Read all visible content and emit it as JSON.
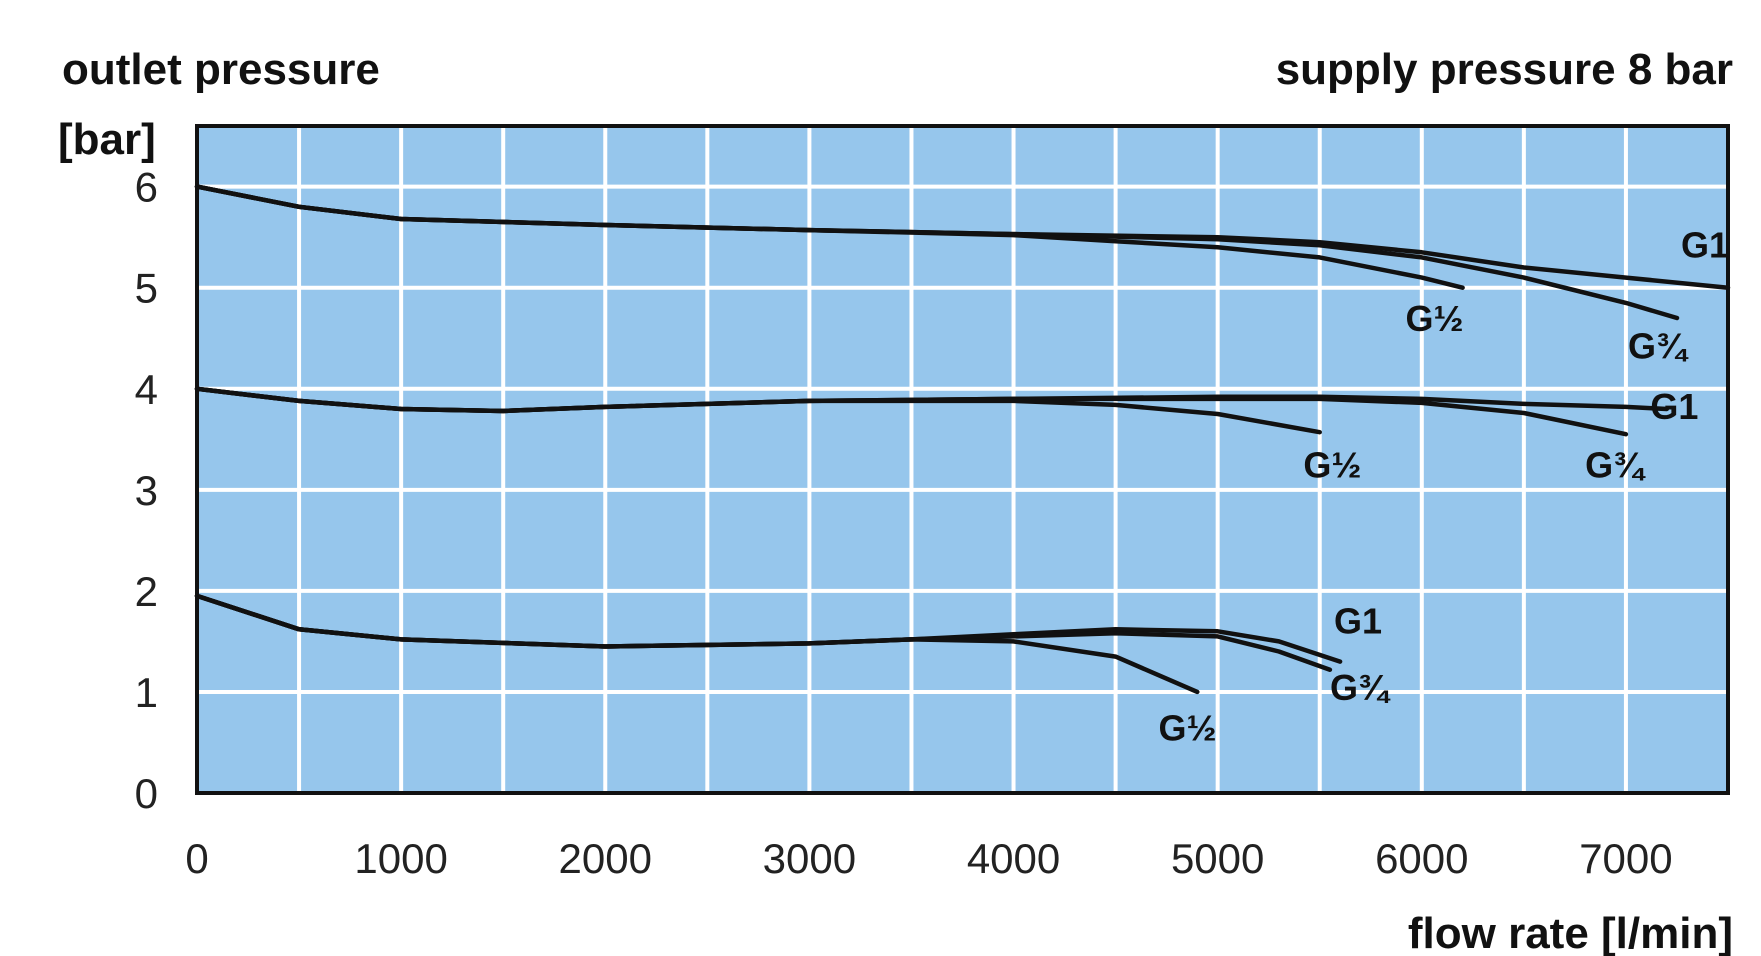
{
  "chart_data": {
    "type": "line",
    "title": "supply pressure 8 bar",
    "ylabel_line1": "outlet pressure",
    "ylabel_line2": "[bar]",
    "xlabel": "flow rate [l/min]",
    "xlim": [
      0,
      7500
    ],
    "ylim": [
      0,
      6.6
    ],
    "x_ticks": [
      0,
      1000,
      2000,
      3000,
      4000,
      5000,
      6000,
      7000
    ],
    "y_ticks": [
      0,
      1,
      2,
      3,
      4,
      5,
      6
    ],
    "grid": true,
    "grid_x_step": 500,
    "plot_background": "#96c6ec",
    "grid_color": "#ffffff",
    "line_color": "#111111",
    "series": [
      {
        "name": "G1",
        "points": [
          [
            0,
            6.0
          ],
          [
            500,
            5.8
          ],
          [
            1000,
            5.68
          ],
          [
            2000,
            5.62
          ],
          [
            3000,
            5.57
          ],
          [
            4000,
            5.53
          ],
          [
            5000,
            5.5
          ],
          [
            5500,
            5.45
          ],
          [
            6000,
            5.35
          ],
          [
            6500,
            5.2
          ],
          [
            7000,
            5.1
          ],
          [
            7500,
            5.0
          ]
        ]
      },
      {
        "name": "G¾",
        "points": [
          [
            0,
            6.0
          ],
          [
            500,
            5.8
          ],
          [
            1000,
            5.68
          ],
          [
            2000,
            5.62
          ],
          [
            3000,
            5.57
          ],
          [
            4000,
            5.53
          ],
          [
            5000,
            5.48
          ],
          [
            5500,
            5.42
          ],
          [
            6000,
            5.3
          ],
          [
            6500,
            5.1
          ],
          [
            7000,
            4.85
          ],
          [
            7250,
            4.7
          ]
        ]
      },
      {
        "name": "G½",
        "points": [
          [
            0,
            6.0
          ],
          [
            500,
            5.8
          ],
          [
            1000,
            5.68
          ],
          [
            2000,
            5.62
          ],
          [
            3000,
            5.57
          ],
          [
            4000,
            5.52
          ],
          [
            4500,
            5.46
          ],
          [
            5000,
            5.4
          ],
          [
            5500,
            5.3
          ],
          [
            6000,
            5.1
          ],
          [
            6200,
            5.0
          ]
        ]
      },
      {
        "name": "G1",
        "points": [
          [
            0,
            4.0
          ],
          [
            500,
            3.88
          ],
          [
            1000,
            3.8
          ],
          [
            1500,
            3.78
          ],
          [
            2000,
            3.82
          ],
          [
            3000,
            3.88
          ],
          [
            4000,
            3.9
          ],
          [
            5000,
            3.92
          ],
          [
            5500,
            3.92
          ],
          [
            6000,
            3.9
          ],
          [
            6500,
            3.85
          ],
          [
            7000,
            3.82
          ],
          [
            7200,
            3.8
          ]
        ]
      },
      {
        "name": "G¾",
        "points": [
          [
            0,
            4.0
          ],
          [
            500,
            3.88
          ],
          [
            1000,
            3.8
          ],
          [
            1500,
            3.78
          ],
          [
            2000,
            3.82
          ],
          [
            3000,
            3.88
          ],
          [
            4000,
            3.9
          ],
          [
            5000,
            3.9
          ],
          [
            5500,
            3.9
          ],
          [
            6000,
            3.86
          ],
          [
            6500,
            3.76
          ],
          [
            7000,
            3.55
          ]
        ]
      },
      {
        "name": "G½",
        "points": [
          [
            0,
            4.0
          ],
          [
            500,
            3.88
          ],
          [
            1000,
            3.8
          ],
          [
            1500,
            3.78
          ],
          [
            2000,
            3.82
          ],
          [
            3000,
            3.88
          ],
          [
            4000,
            3.88
          ],
          [
            4500,
            3.84
          ],
          [
            5000,
            3.75
          ],
          [
            5500,
            3.57
          ]
        ]
      },
      {
        "name": "G1",
        "points": [
          [
            0,
            1.95
          ],
          [
            500,
            1.62
          ],
          [
            1000,
            1.52
          ],
          [
            2000,
            1.45
          ],
          [
            3000,
            1.48
          ],
          [
            3500,
            1.52
          ],
          [
            4000,
            1.57
          ],
          [
            4500,
            1.62
          ],
          [
            5000,
            1.6
          ],
          [
            5300,
            1.5
          ],
          [
            5600,
            1.3
          ]
        ]
      },
      {
        "name": "G¾",
        "points": [
          [
            0,
            1.95
          ],
          [
            500,
            1.62
          ],
          [
            1000,
            1.52
          ],
          [
            2000,
            1.45
          ],
          [
            3000,
            1.48
          ],
          [
            3500,
            1.52
          ],
          [
            4000,
            1.55
          ],
          [
            4500,
            1.58
          ],
          [
            5000,
            1.55
          ],
          [
            5300,
            1.4
          ],
          [
            5550,
            1.22
          ]
        ]
      },
      {
        "name": "G½",
        "points": [
          [
            0,
            1.95
          ],
          [
            500,
            1.62
          ],
          [
            1000,
            1.52
          ],
          [
            2000,
            1.45
          ],
          [
            3000,
            1.48
          ],
          [
            3500,
            1.52
          ],
          [
            4000,
            1.5
          ],
          [
            4500,
            1.35
          ],
          [
            4900,
            1.0
          ]
        ]
      }
    ],
    "curve_labels": [
      {
        "text": "G1",
        "x": 7270,
        "y": 5.3
      },
      {
        "text": "G½",
        "x": 5920,
        "y": 4.57
      },
      {
        "text": "G¾",
        "x": 7010,
        "y": 4.3
      },
      {
        "text": "G1",
        "x": 7120,
        "y": 3.7
      },
      {
        "text": "G½",
        "x": 5420,
        "y": 3.12
      },
      {
        "text": "G¾",
        "x": 6800,
        "y": 3.12
      },
      {
        "text": "G1",
        "x": 5570,
        "y": 1.58
      },
      {
        "text": "G¾",
        "x": 5550,
        "y": 0.92
      },
      {
        "text": "G½",
        "x": 4710,
        "y": 0.52
      }
    ]
  }
}
